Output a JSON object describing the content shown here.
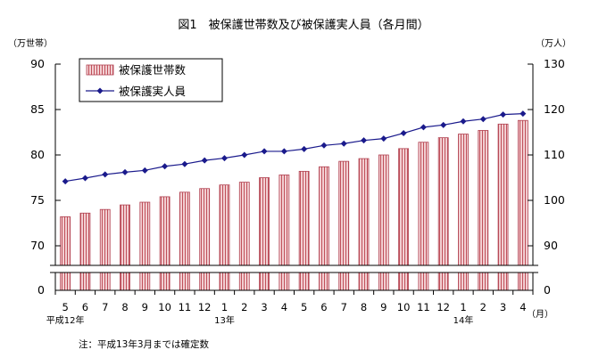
{
  "chart_data": {
    "type": "bar",
    "title": "図1　被保護世帯数及び被保護実人員（各月間）",
    "y_left_unit": "（万世帯）",
    "y_right_unit": "（万人）",
    "x_unit": "（月）",
    "categories": [
      "5",
      "6",
      "7",
      "8",
      "9",
      "10",
      "11",
      "12",
      "1",
      "2",
      "3",
      "4",
      "5",
      "6",
      "7",
      "8",
      "9",
      "10",
      "11",
      "12",
      "1",
      "2",
      "3",
      "4"
    ],
    "year_labels": [
      {
        "index": 0,
        "text": "平成12年"
      },
      {
        "index": 8,
        "text": "13年"
      },
      {
        "index": 20,
        "text": "14年"
      }
    ],
    "left_axis": {
      "ylim": [
        70,
        90
      ],
      "ticks": [
        70,
        75,
        80,
        85,
        90
      ],
      "zero_label": "0"
    },
    "right_axis": {
      "ylim": [
        90,
        130
      ],
      "ticks": [
        90,
        100,
        110,
        120,
        130
      ],
      "zero_label": "0"
    },
    "series": [
      {
        "name": "被保護世帯数",
        "type": "bar",
        "axis": "left",
        "values": [
          73.2,
          73.6,
          74.0,
          74.5,
          74.8,
          75.4,
          75.9,
          76.3,
          76.7,
          77.0,
          77.5,
          77.8,
          78.2,
          78.7,
          79.3,
          79.6,
          80.0,
          80.7,
          81.4,
          81.9,
          82.3,
          82.7,
          83.4,
          83.8
        ]
      },
      {
        "name": "被保護実人員",
        "type": "line",
        "axis": "right",
        "values": [
          104.2,
          104.9,
          105.7,
          106.2,
          106.6,
          107.5,
          108.0,
          108.8,
          109.3,
          110.0,
          110.8,
          110.8,
          111.3,
          112.1,
          112.5,
          113.2,
          113.6,
          114.8,
          116.1,
          116.6,
          117.4,
          117.9,
          118.9,
          119.1
        ]
      }
    ],
    "legend_position": "top-left",
    "colors": {
      "bar_fill": "#f2cfd2",
      "bar_stripe": "#c0505a",
      "bar_edge": "#b04050",
      "line": "#1a1a8c"
    },
    "grid": false,
    "note": "注：平成13年3月までは確定数"
  }
}
